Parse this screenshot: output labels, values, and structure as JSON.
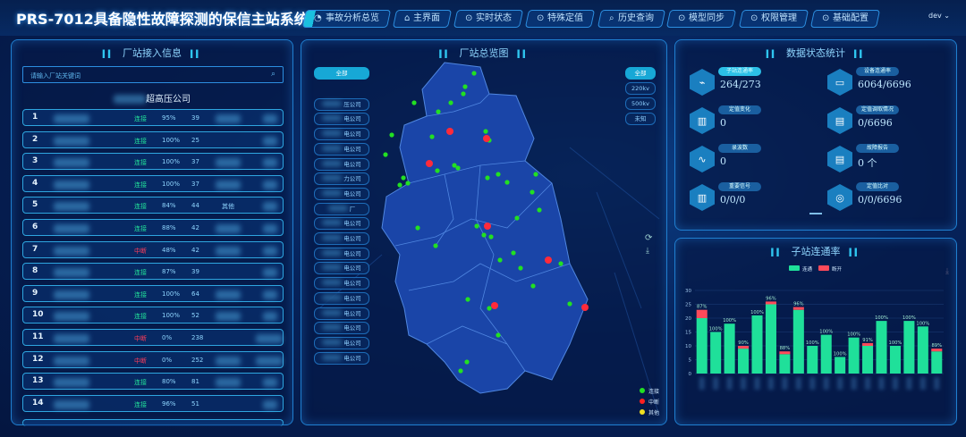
{
  "header": {
    "title": "PRS-7012具备隐性故障探测的保信主站系统",
    "tabs": [
      "事故分析总览",
      "主界面",
      "实时状态",
      "特殊定值",
      "历史查询",
      "模型同步",
      "权限管理",
      "基础配置"
    ],
    "user": "dev"
  },
  "left": {
    "title": "厂站接入信息",
    "search_placeholder": "请输入厂站关键词",
    "company": "超高压公司",
    "rows": [
      {
        "no": "1",
        "status": "连接",
        "state": "ok",
        "rate": "95%",
        "count": "39",
        "extra": ""
      },
      {
        "no": "2",
        "status": "连接",
        "state": "ok",
        "rate": "100%",
        "count": "25",
        "extra": ""
      },
      {
        "no": "3",
        "status": "连接",
        "state": "ok",
        "rate": "100%",
        "count": "37",
        "extra": ""
      },
      {
        "no": "4",
        "status": "连接",
        "state": "ok",
        "rate": "100%",
        "count": "37",
        "extra": ""
      },
      {
        "no": "5",
        "status": "连接",
        "state": "ok",
        "rate": "84%",
        "count": "44",
        "extra": "其他"
      },
      {
        "no": "6",
        "status": "连接",
        "state": "ok",
        "rate": "88%",
        "count": "42",
        "extra": ""
      },
      {
        "no": "7",
        "status": "中断",
        "state": "bad",
        "rate": "48%",
        "count": "42",
        "extra": ""
      },
      {
        "no": "8",
        "status": "连接",
        "state": "ok",
        "rate": "87%",
        "count": "39",
        "extra": ""
      },
      {
        "no": "9",
        "status": "连接",
        "state": "ok",
        "rate": "100%",
        "count": "64",
        "extra": ""
      },
      {
        "no": "10",
        "status": "连接",
        "state": "ok",
        "rate": "100%",
        "count": "52",
        "extra": ""
      },
      {
        "no": "11",
        "status": "中断",
        "state": "bad",
        "rate": "0%",
        "count": "238",
        "extra": ""
      },
      {
        "no": "12",
        "status": "中断",
        "state": "bad",
        "rate": "0%",
        "count": "252",
        "extra": ""
      },
      {
        "no": "13",
        "status": "连接",
        "state": "ok",
        "rate": "80%",
        "count": "81",
        "extra": ""
      },
      {
        "no": "14",
        "status": "连接",
        "state": "ok",
        "rate": "96%",
        "count": "51",
        "extra": ""
      }
    ]
  },
  "map": {
    "title": "厂站总览图",
    "left_filters": [
      "全部",
      "压公司",
      "电公司",
      "电公司",
      "电公司",
      "电公司",
      "力公司",
      "电公司",
      "厂",
      "电公司",
      "电公司",
      "电公司",
      "电公司",
      "电公司",
      "电公司",
      "电公司",
      "电公司",
      "电公司",
      "电公司"
    ],
    "right_filters": [
      "全部",
      "220kv",
      "500kv",
      "未知"
    ],
    "legend": [
      {
        "label": "连接",
        "color": "#22e022"
      },
      {
        "label": "中断",
        "color": "#ff2020"
      },
      {
        "label": "其他",
        "color": "#f0e020"
      }
    ]
  },
  "stats": {
    "title": "数据状态统计",
    "items": [
      {
        "label": "子站连通率",
        "value": "264/273",
        "icon": "monitor-chart-icon"
      },
      {
        "label": "设备连通率",
        "value": "6064/6696",
        "icon": "device-card-icon"
      },
      {
        "label": "定值变化",
        "value": "0",
        "icon": "document-icon"
      },
      {
        "label": "定值调取情况",
        "value": "0/6696",
        "icon": "calendar-x-icon"
      },
      {
        "label": "录波数",
        "value": "0",
        "icon": "waveform-icon"
      },
      {
        "label": "故障报告",
        "value": "0 个",
        "icon": "report-icon"
      },
      {
        "label": "重要信号",
        "value": "0/0/0",
        "icon": "signal-doc-icon"
      },
      {
        "label": "定值比对",
        "value": "0/0/6696",
        "icon": "broadcast-icon"
      }
    ]
  },
  "chart_data": {
    "type": "bar",
    "title": "子站连通率",
    "stacked": true,
    "ylim": [
      0,
      30
    ],
    "yticks": [
      0,
      5,
      10,
      15,
      20,
      25,
      30
    ],
    "legend_position": "top",
    "grid": true,
    "series": [
      {
        "name": "连通",
        "color": "#1fe09a",
        "values": [
          20,
          15,
          18,
          9,
          21,
          25,
          7,
          23,
          10,
          14,
          6,
          13,
          10,
          19,
          10,
          19,
          17,
          8
        ]
      },
      {
        "name": "断开",
        "color": "#ff4a5a",
        "values": [
          3,
          0,
          0,
          1,
          0,
          1,
          1,
          1,
          0,
          0,
          0,
          0,
          1,
          0,
          0,
          0,
          0,
          1
        ]
      }
    ],
    "labels": [
      "87%",
      "100%",
      "100%",
      "90%",
      "100%",
      "96%",
      "88%",
      "96%",
      "100%",
      "100%",
      "100%",
      "100%",
      "91%",
      "100%",
      "100%",
      "100%",
      "100%",
      "89%"
    ]
  }
}
